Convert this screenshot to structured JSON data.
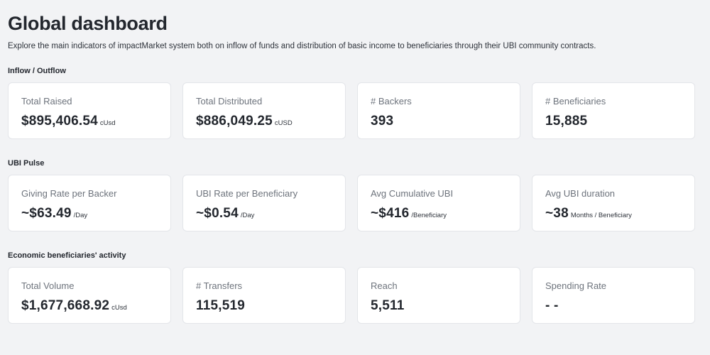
{
  "header": {
    "title": "Global dashboard",
    "subtitle": "Explore the main indicators of impactMarket system both on inflow of funds and distribution of basic income to beneficiaries through their UBI community contracts."
  },
  "sections": [
    {
      "title": "Inflow / Outflow",
      "cards": [
        {
          "label": "Total Raised",
          "value": "$895,406.54",
          "unit": "cUsd"
        },
        {
          "label": "Total Distributed",
          "value": "$886,049.25",
          "unit": "cUSD"
        },
        {
          "label": "# Backers",
          "value": "393",
          "unit": ""
        },
        {
          "label": "# Beneficiaries",
          "value": "15,885",
          "unit": ""
        }
      ]
    },
    {
      "title": "UBI Pulse",
      "cards": [
        {
          "label": "Giving Rate per Backer",
          "value": "~$63.49",
          "unit": "/Day"
        },
        {
          "label": "UBI Rate per Beneficiary",
          "value": "~$0.54",
          "unit": "/Day"
        },
        {
          "label": "Avg Cumulative UBI",
          "value": "~$416",
          "unit": "/Beneficiary"
        },
        {
          "label": "Avg UBI duration",
          "value": "~38",
          "unit": "Months / Beneficiary"
        }
      ]
    },
    {
      "title": "Economic beneficiaries' activity",
      "cards": [
        {
          "label": "Total Volume",
          "value": "$1,677,668.92",
          "unit": "cUsd"
        },
        {
          "label": "# Transfers",
          "value": "115,519",
          "unit": ""
        },
        {
          "label": "Reach",
          "value": "5,511",
          "unit": ""
        },
        {
          "label": "Spending Rate",
          "value": "- -",
          "unit": ""
        }
      ]
    }
  ]
}
